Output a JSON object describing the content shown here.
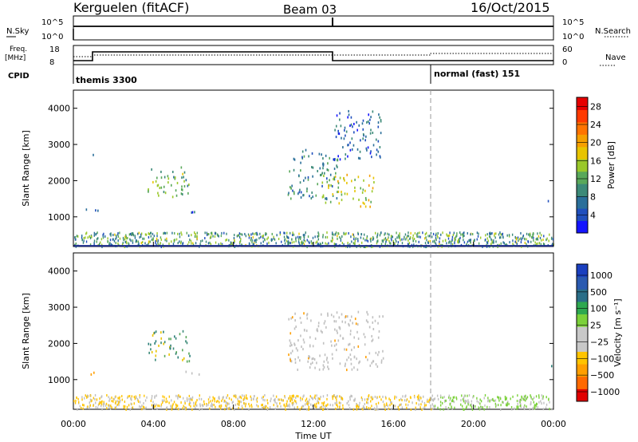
{
  "header": {
    "station": "Kerguelen (fitACF)",
    "beam": "Beam 03",
    "date": "16/Oct/2015"
  },
  "params": {
    "nsky_label": "N.Sky",
    "nsearch_label": "N.Search",
    "freq_label_1": "Freq.",
    "freq_label_2": "[MHz]",
    "nave_label": "Nave",
    "cpid_label": "CPID",
    "log_tick_top": "10^5",
    "log_tick_bottom": "10^0",
    "freq_ticks": [
      "18",
      "8"
    ],
    "nave_ticks": [
      "60",
      "0"
    ],
    "cpid_segments": [
      {
        "label": "themis 3300",
        "start_hour": 0
      },
      {
        "label": "normal (fast) 151",
        "start_hour": 18
      }
    ]
  },
  "colors": {
    "power": [
      "#1414ff",
      "#1f4fbd",
      "#2a6f9a",
      "#3c8a78",
      "#59a85a",
      "#9ac82a",
      "#e8c400",
      "#f6a000",
      "#ff7400",
      "#ff3a00",
      "#e60000"
    ],
    "velocity": [
      "#e10000",
      "#ff6a00",
      "#ff9f00",
      "#ffc400",
      "#c8c8c8",
      "#c8c8c8",
      "#7bd13a",
      "#2ea850",
      "#2a6e88",
      "#2a5ab0",
      "#1a3fbf"
    ],
    "gs": "#c0c0c0"
  },
  "chart_data": [
    {
      "type": "heatmap",
      "panel": "power",
      "ylabel": "Slant Range [km]",
      "x_range_hours": [
        0,
        24
      ],
      "ylim": [
        180,
        4500
      ],
      "y_ticks": [
        1000,
        2000,
        3000,
        4000
      ],
      "colorbar": {
        "label": "Power [dB]",
        "ticks": [
          "4",
          "8",
          "12",
          "16",
          "20",
          "24",
          "28"
        ],
        "range": [
          0,
          30
        ]
      },
      "echo_regions": [
        {
          "t0": 0.9,
          "t1": 1.0,
          "r0": 2650,
          "r1": 2950,
          "value": 5
        },
        {
          "t0": 0.5,
          "t1": 1.2,
          "r0": 1100,
          "r1": 1250,
          "value": 4
        },
        {
          "t0": 3.7,
          "t1": 5.8,
          "r0": 1500,
          "r1": 2400,
          "value": 12
        },
        {
          "t0": 5.5,
          "t1": 6.6,
          "r0": 1150,
          "r1": 1250,
          "value": 5
        },
        {
          "t0": 10.7,
          "t1": 13.2,
          "r0": 1500,
          "r1": 2900,
          "value": 8
        },
        {
          "t0": 12.4,
          "t1": 15.0,
          "r0": 1300,
          "r1": 2200,
          "value": 16
        },
        {
          "t0": 13.0,
          "t1": 15.5,
          "r0": 2600,
          "r1": 4000,
          "value": 5
        },
        {
          "t0": 23.7,
          "t1": 24.0,
          "r0": 1350,
          "r1": 1500,
          "value": 6
        }
      ]
    },
    {
      "type": "heatmap",
      "panel": "velocity",
      "ylabel": "Slant Range [km]",
      "xlabel": "Time UT",
      "x_range_hours": [
        0,
        24
      ],
      "ylim": [
        180,
        4500
      ],
      "y_ticks": [
        1000,
        2000,
        3000,
        4000
      ],
      "x_ticks": [
        "00:00",
        "04:00",
        "08:00",
        "12:00",
        "16:00",
        "20:00",
        "00:00"
      ],
      "colorbar": {
        "label": "Velocity [m s⁻¹]",
        "ticks": [
          "1000",
          "500",
          "100",
          "25",
          "−25",
          "−100",
          "−500",
          "−1000"
        ]
      },
      "echo_regions": [
        {
          "t0": 0.5,
          "t1": 1.0,
          "r0": 1100,
          "r1": 1250,
          "value": "orange"
        },
        {
          "t0": 3.7,
          "t1": 5.8,
          "r0": 1500,
          "r1": 2400,
          "value": "teal"
        },
        {
          "t0": 5.5,
          "t1": 6.6,
          "r0": 1150,
          "r1": 1250,
          "value": "gray"
        },
        {
          "t0": 10.7,
          "t1": 15.5,
          "r0": 1300,
          "r1": 2900,
          "value": "gray"
        },
        {
          "t0": 23.7,
          "t1": 24.0,
          "r0": 1350,
          "r1": 1500,
          "value": "teal"
        }
      ]
    }
  ]
}
